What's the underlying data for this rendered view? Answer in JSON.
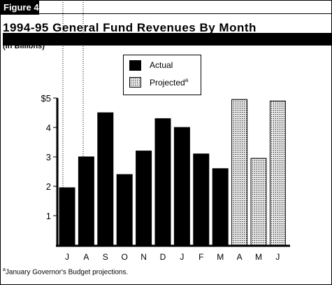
{
  "figure_label": "Figure 4",
  "footnote": {
    "mark": "a",
    "text": "January Governor's Budget projections."
  },
  "chart_data": {
    "type": "bar",
    "title": "1994-95 General Fund Revenues By Month",
    "subtitle": "(In Billions)",
    "categories": [
      "J",
      "A",
      "S",
      "O",
      "N",
      "D",
      "J",
      "F",
      "M",
      "A",
      "M",
      "J"
    ],
    "series": [
      {
        "name": "Actual",
        "values": [
          1.95,
          3.0,
          4.5,
          2.4,
          3.2,
          4.3,
          4.0,
          3.1,
          2.6,
          null,
          null,
          null
        ],
        "color": "#000000"
      },
      {
        "name": "Projected",
        "values": [
          null,
          null,
          null,
          null,
          null,
          null,
          null,
          null,
          null,
          4.95,
          2.95,
          4.9
        ],
        "color": "#e6e6e6"
      }
    ],
    "legend": {
      "actual": "Actual",
      "projected": "Projected",
      "projected_mark": "a",
      "placement": "top-center"
    },
    "y_ticks": [
      "1",
      "2",
      "3",
      "4",
      "$5"
    ],
    "y_tick_values": [
      1,
      2,
      3,
      4,
      5
    ],
    "ylim": [
      0,
      5
    ],
    "grid": false
  }
}
